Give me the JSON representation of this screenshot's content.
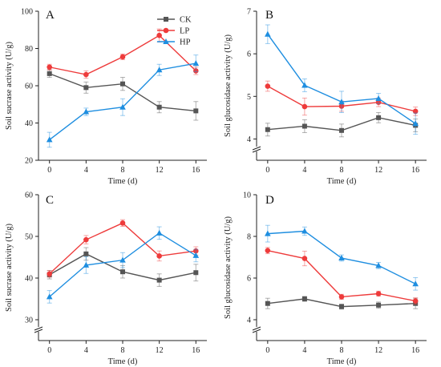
{
  "colors": {
    "CK": "#555555",
    "LP": "#ee3b3b",
    "HP": "#1e8ee0"
  },
  "legend": [
    {
      "name": "CK",
      "marker": "square"
    },
    {
      "name": "LP",
      "marker": "circle"
    },
    {
      "name": "HP",
      "marker": "triangle"
    }
  ],
  "chart_data": [
    {
      "type": "line",
      "title": "A",
      "xlabel": "Time (d)",
      "ylabel": "Soil sucrase activity (U/g)",
      "x": [
        0,
        4,
        8,
        12,
        16
      ],
      "xticks": [
        0,
        4,
        8,
        12,
        16
      ],
      "ylim": [
        20,
        100
      ],
      "yticks": [
        20,
        40,
        60,
        80,
        100
      ],
      "axis_break": false,
      "legend": "top-right",
      "series": [
        {
          "name": "CK",
          "values": [
            66.5,
            59,
            61,
            48.5,
            46.5
          ],
          "errors": [
            2,
            3,
            3.5,
            3,
            5
          ]
        },
        {
          "name": "LP",
          "values": [
            70,
            66,
            75.5,
            87,
            68
          ],
          "errors": [
            1.5,
            2,
            1.5,
            3.5,
            2
          ]
        },
        {
          "name": "HP",
          "values": [
            31,
            46,
            48.5,
            68.5,
            72
          ],
          "errors": [
            4,
            2,
            4.5,
            3,
            4.5
          ]
        }
      ]
    },
    {
      "type": "line",
      "title": "B",
      "xlabel": "Time (d)",
      "ylabel": "Soil glucosidase activity (U/g)",
      "x": [
        0,
        4,
        8,
        12,
        16
      ],
      "xticks": [
        0,
        4,
        8,
        12,
        16
      ],
      "ylim": [
        3.5,
        7
      ],
      "yticks": [
        4,
        5,
        6,
        7
      ],
      "axis_break": true,
      "series": [
        {
          "name": "CK",
          "values": [
            4.22,
            4.3,
            4.2,
            4.5,
            4.32
          ],
          "errors": [
            0.15,
            0.15,
            0.15,
            0.12,
            0.15
          ]
        },
        {
          "name": "LP",
          "values": [
            5.24,
            4.76,
            4.77,
            4.86,
            4.65
          ],
          "errors": [
            0.12,
            0.2,
            0.12,
            0.1,
            0.1
          ]
        },
        {
          "name": "HP",
          "values": [
            6.46,
            5.26,
            4.87,
            4.95,
            4.36
          ],
          "errors": [
            0.22,
            0.15,
            0.25,
            0.12,
            0.25
          ]
        }
      ]
    },
    {
      "type": "line",
      "title": "C",
      "xlabel": "Time (d)",
      "ylabel": "Soil sucrase activity (U/g)",
      "x": [
        0,
        4,
        8,
        12,
        16
      ],
      "xticks": [
        0,
        4,
        8,
        12,
        16
      ],
      "ylim": [
        25,
        60
      ],
      "yticks": [
        30,
        40,
        50,
        60
      ],
      "axis_break": true,
      "series": [
        {
          "name": "CK",
          "values": [
            40.8,
            45.8,
            41.5,
            39.5,
            41.3
          ],
          "errors": [
            1,
            1.5,
            1.5,
            1.5,
            2
          ]
        },
        {
          "name": "LP",
          "values": [
            41,
            49.2,
            53.2,
            45.3,
            46.5
          ],
          "errors": [
            0.8,
            1,
            0.8,
            1.2,
            1
          ]
        },
        {
          "name": "HP",
          "values": [
            35.5,
            43.1,
            44.3,
            50.8,
            45.4
          ],
          "errors": [
            1.5,
            2,
            1.8,
            1.5,
            1.5
          ]
        }
      ]
    },
    {
      "type": "line",
      "title": "D",
      "xlabel": "Time (d)",
      "ylabel": "Soil glucosidase activity (U/g)",
      "x": [
        0,
        4,
        8,
        12,
        16
      ],
      "xticks": [
        0,
        4,
        8,
        12,
        16
      ],
      "ylim": [
        3,
        10
      ],
      "yticks": [
        4,
        6,
        8,
        10
      ],
      "axis_break": true,
      "series": [
        {
          "name": "CK",
          "values": [
            4.78,
            5,
            4.63,
            4.7,
            4.78
          ],
          "errors": [
            0.25,
            0.12,
            0.12,
            0.15,
            0.25
          ]
        },
        {
          "name": "LP",
          "values": [
            7.32,
            6.94,
            5.1,
            5.25,
            4.9
          ],
          "errors": [
            0.15,
            0.35,
            0.12,
            0.12,
            0.15
          ]
        },
        {
          "name": "HP",
          "values": [
            8.13,
            8.25,
            6.96,
            6.6,
            5.72
          ],
          "errors": [
            0.4,
            0.2,
            0.15,
            0.15,
            0.3
          ]
        }
      ]
    }
  ]
}
